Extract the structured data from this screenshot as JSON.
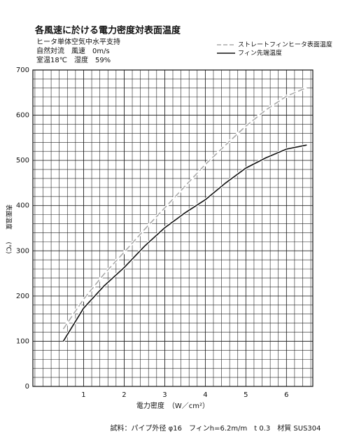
{
  "chart_data": {
    "type": "line",
    "title": "各風速に於ける電力密度対表面温度",
    "notes": [
      "ヒータ単体空気中水平支持",
      "自然対流　風速　0m/s",
      "室温18℃　湿度　59%"
    ],
    "xlabel": "電力密度　（W／cm²）",
    "ylabel": "表面温度",
    "yunit": "(℃)",
    "footer": "試料：パイプ外径 φ16　フィンh=6.2m/m　t 0.3　材質 SUS304",
    "x": [
      0.5,
      1,
      1.5,
      2,
      2.5,
      3,
      3.5,
      4,
      4.5,
      5,
      5.5,
      6,
      6.5
    ],
    "series": [
      {
        "name": "ストレートフィンヒータ表面温度",
        "color": "#aaaaaa",
        "dashed": true,
        "values": [
          127,
          193,
          248,
          297,
          347,
          395,
          443,
          491,
          534,
          576,
          612,
          642,
          661
        ]
      },
      {
        "name": "フィン先端温度",
        "color": "#111111",
        "dashed": false,
        "values": [
          100,
          173,
          222,
          263,
          310,
          351,
          384,
          413,
          450,
          483,
          506,
          525,
          534
        ]
      }
    ],
    "xlim": [
      -0.25,
      6.65
    ],
    "xticks": [
      1,
      2,
      3,
      4,
      5,
      6
    ],
    "ylim": [
      0,
      700
    ],
    "yticks": [
      0,
      100,
      200,
      300,
      400,
      500,
      600,
      700
    ],
    "grid": true,
    "legend": "top-right"
  }
}
